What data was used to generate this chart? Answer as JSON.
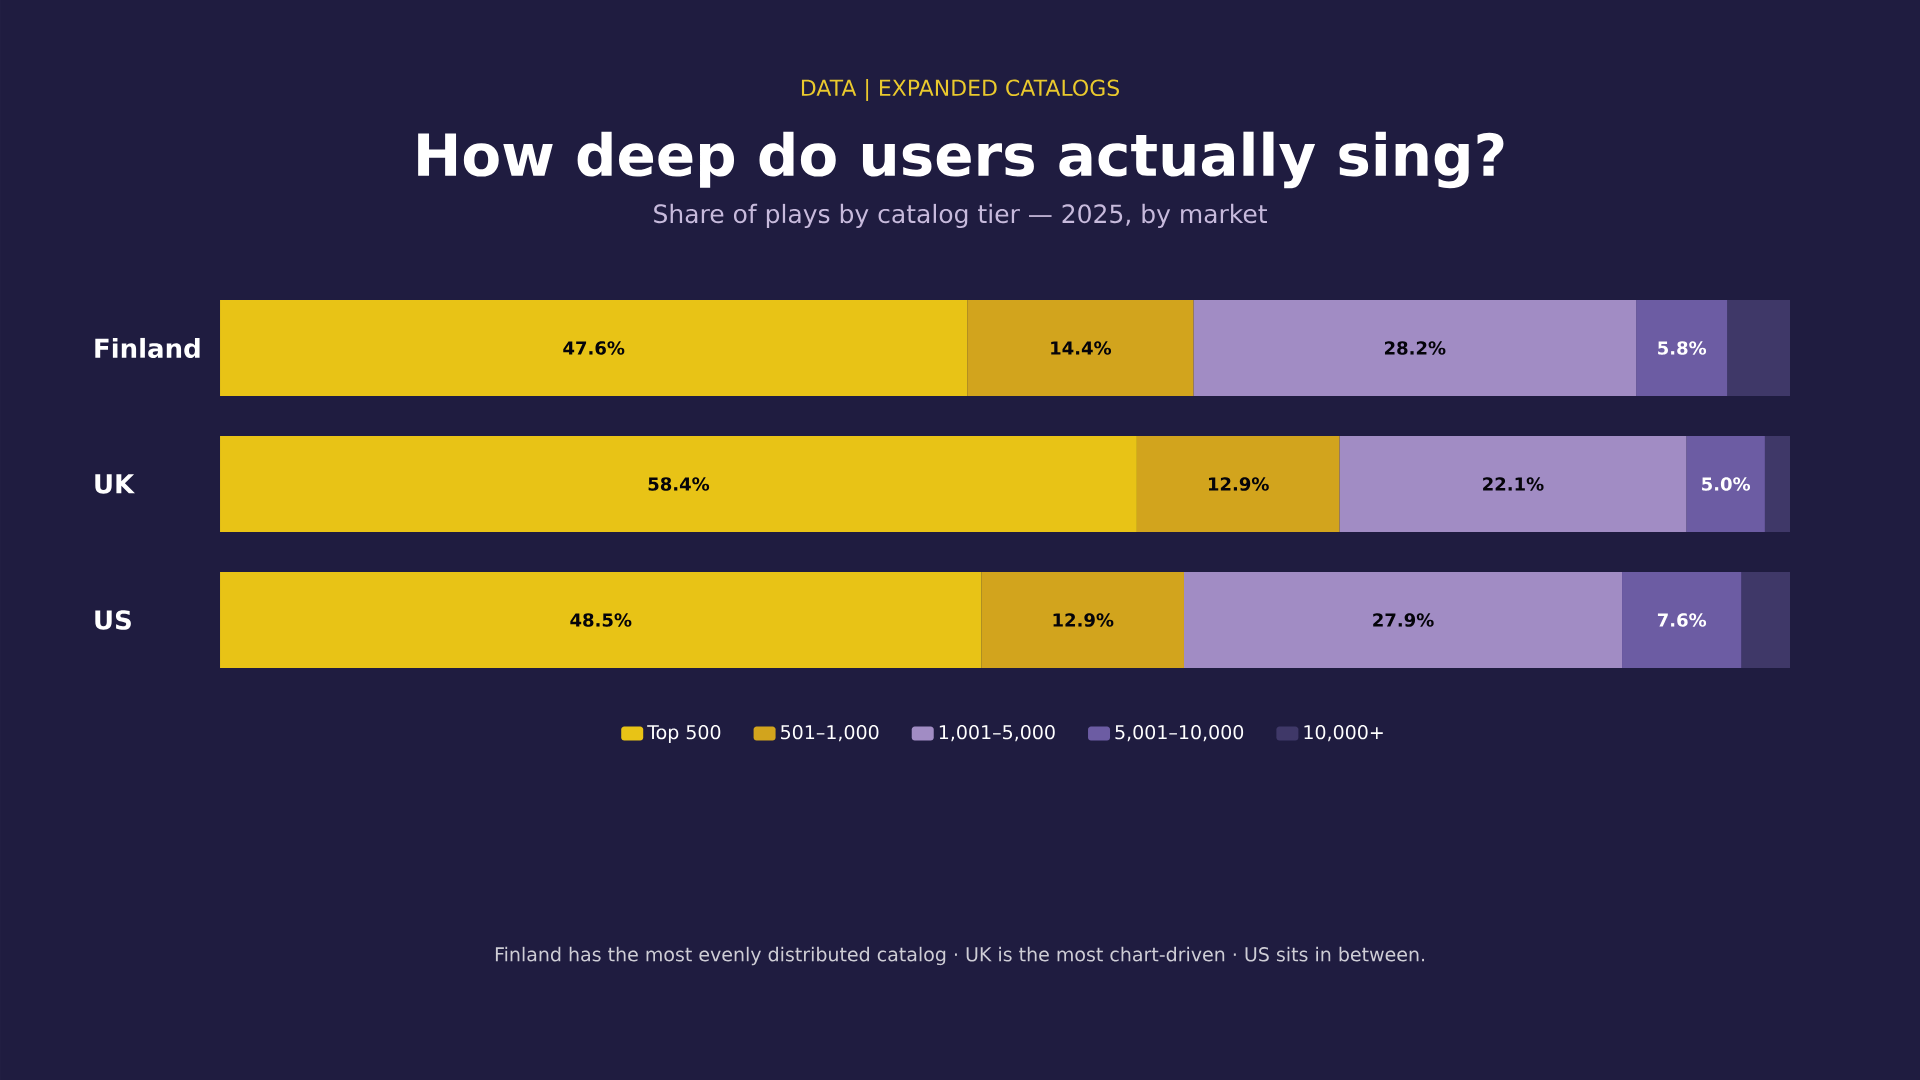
{
  "chart_data": {
    "type": "bar",
    "orientation": "horizontal",
    "stacked": true,
    "legend": "bottom",
    "title": "How deep do users actually sing?",
    "subtitle": "Share of plays by catalog tier — 2025, by market",
    "annotations": [
      "DATA | EXPANDED CATALOGS",
      "Finland has the most evenly distributed catalog · UK is the most chart-driven · US sits in between."
    ],
    "categories": [
      "Finland",
      "UK",
      "US"
    ],
    "series": [
      {
        "name": "Top 500",
        "color": "#e8c316",
        "values": [
          47.6,
          58.4,
          48.5
        ],
        "value_labels": [
          "47.6%",
          "58.4%",
          "48.5%"
        ]
      },
      {
        "name": "501–1,000",
        "color": "#d2a41d",
        "values": [
          14.4,
          12.9,
          12.9
        ],
        "value_labels": [
          "14.4%",
          "12.9%",
          "12.9%"
        ]
      },
      {
        "name": "1,001–5,000",
        "color": "#a18cc4",
        "values": [
          28.2,
          22.1,
          27.9
        ],
        "value_labels": [
          "28.2%",
          "22.1%",
          "27.9%"
        ]
      },
      {
        "name": "5,001–10,000",
        "color": "#6c5ca3",
        "values": [
          5.8,
          5.0,
          7.6
        ],
        "value_labels": [
          "5.8%",
          "5.0%",
          "7.6%"
        ]
      },
      {
        "name": "10,000+",
        "color": "#3f3868",
        "values": [
          4.0,
          1.6,
          3.1
        ],
        "value_labels": [
          null,
          null,
          null
        ]
      }
    ]
  }
}
